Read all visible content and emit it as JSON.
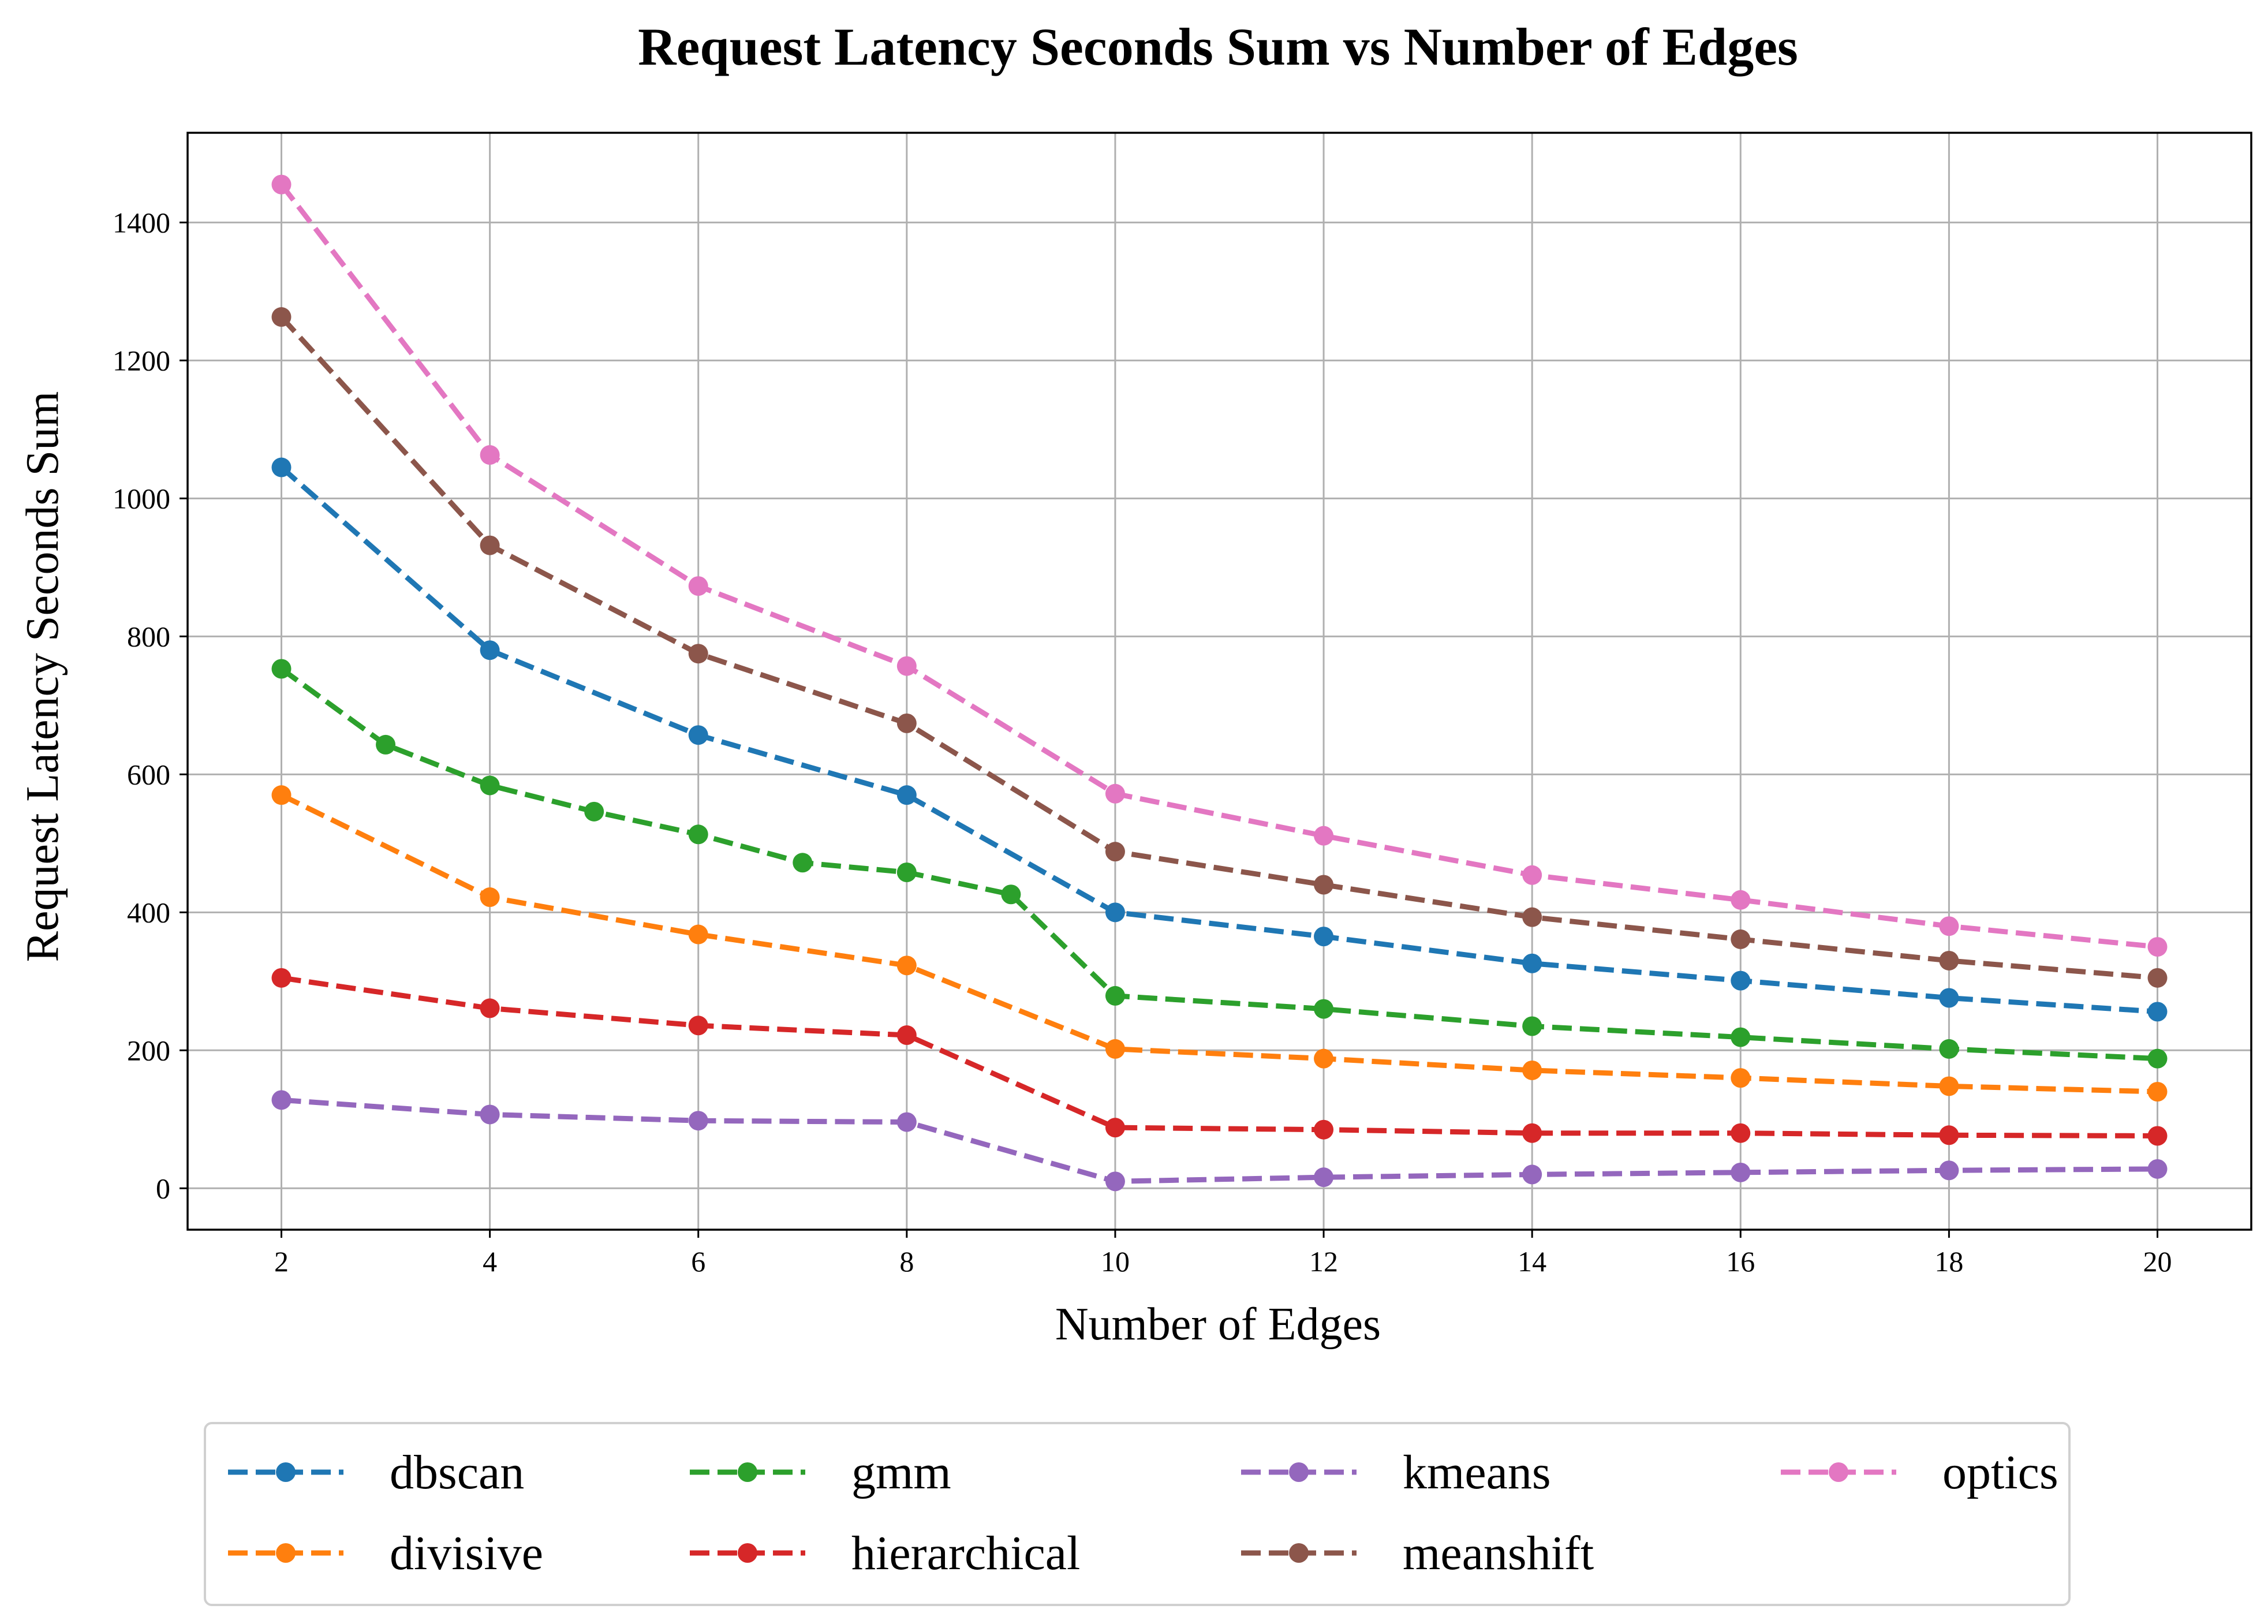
{
  "chart_data": {
    "type": "line",
    "title": "Request Latency Seconds Sum vs Number of Edges",
    "xlabel": "Number of Edges",
    "ylabel": "Request Latency Seconds Sum",
    "xlim": [
      1.1,
      20.9
    ],
    "ylim": [
      -60,
      1530
    ],
    "xticks": [
      2,
      4,
      6,
      8,
      10,
      12,
      14,
      16,
      18,
      20
    ],
    "yticks": [
      0,
      200,
      400,
      600,
      800,
      1000,
      1200,
      1400
    ],
    "grid": true,
    "legend_position": "bottom, outside plot",
    "line_style": "dashed",
    "marker": "circle",
    "series": [
      {
        "name": "dbscan",
        "color": "#1f77b4",
        "x": [
          2,
          4,
          6,
          8,
          10,
          12,
          14,
          16,
          18,
          20
        ],
        "y": [
          1045,
          780,
          657,
          570,
          400,
          365,
          326,
          301,
          276,
          256
        ]
      },
      {
        "name": "divisive",
        "color": "#ff7f0e",
        "x": [
          2,
          4,
          6,
          8,
          10,
          12,
          14,
          16,
          18,
          20
        ],
        "y": [
          570,
          422,
          368,
          323,
          202,
          188,
          171,
          160,
          148,
          140
        ]
      },
      {
        "name": "gmm",
        "color": "#2ca02c",
        "x": [
          2,
          3,
          4,
          5,
          6,
          7,
          8,
          9,
          10,
          12,
          14,
          16,
          18,
          20
        ],
        "y": [
          753,
          643,
          584,
          546,
          513,
          472,
          458,
          426,
          279,
          260,
          235,
          219,
          202,
          188
        ]
      },
      {
        "name": "hierarchical",
        "color": "#d62728",
        "x": [
          2,
          4,
          6,
          8,
          10,
          12,
          14,
          16,
          18,
          20
        ],
        "y": [
          305,
          261,
          236,
          222,
          88,
          85,
          80,
          80,
          77,
          76
        ]
      },
      {
        "name": "kmeans",
        "color": "#9467bd",
        "x": [
          2,
          4,
          6,
          8,
          10,
          12,
          14,
          16,
          18,
          20
        ],
        "y": [
          128,
          107,
          98,
          96,
          10,
          16,
          20,
          23,
          26,
          28
        ]
      },
      {
        "name": "meanshift",
        "color": "#8c564b",
        "x": [
          2,
          4,
          6,
          8,
          10,
          12,
          14,
          16,
          18,
          20
        ],
        "y": [
          1263,
          932,
          775,
          674,
          488,
          440,
          393,
          361,
          330,
          305
        ]
      },
      {
        "name": "optics",
        "color": "#e377c2",
        "x": [
          2,
          4,
          6,
          8,
          10,
          12,
          14,
          16,
          18,
          20
        ],
        "y": [
          1455,
          1063,
          873,
          757,
          572,
          511,
          454,
          418,
          380,
          350
        ]
      }
    ],
    "legend_order": [
      "dbscan",
      "divisive",
      "gmm",
      "hierarchical",
      "kmeans",
      "meanshift",
      "optics"
    ],
    "axis_color": "#000000",
    "grid_color": "#b0b0b0"
  }
}
